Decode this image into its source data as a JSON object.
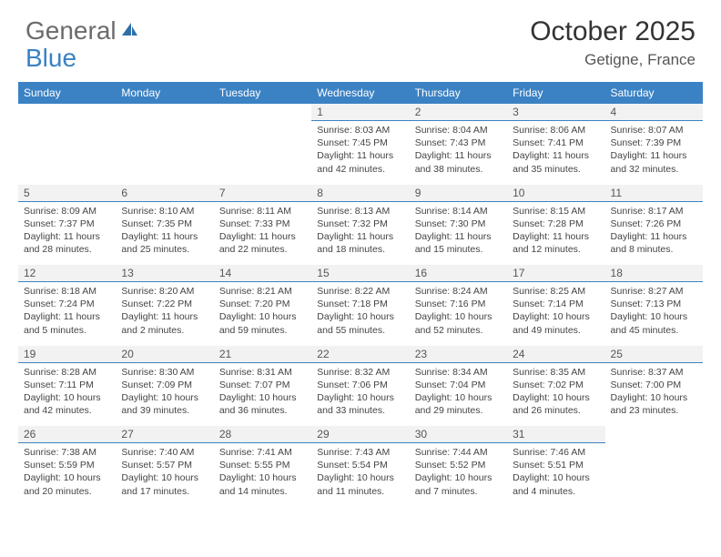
{
  "logo": {
    "text1": "General",
    "text2": "Blue"
  },
  "title": "October 2025",
  "location": "Getigne, France",
  "day_headers": [
    "Sunday",
    "Monday",
    "Tuesday",
    "Wednesday",
    "Thursday",
    "Friday",
    "Saturday"
  ],
  "colors": {
    "header_bg": "#3b82c4",
    "header_text": "#ffffff",
    "daynum_bg": "#f2f2f2",
    "daynum_border": "#3b82c4",
    "body_text": "#444444",
    "title_text": "#333333"
  },
  "weeks": [
    {
      "nums": [
        "",
        "",
        "",
        "1",
        "2",
        "3",
        "4"
      ],
      "cells": [
        null,
        null,
        null,
        {
          "sunrise": "8:03 AM",
          "sunset": "7:45 PM",
          "daylight1": "Daylight: 11 hours",
          "daylight2": "and 42 minutes."
        },
        {
          "sunrise": "8:04 AM",
          "sunset": "7:43 PM",
          "daylight1": "Daylight: 11 hours",
          "daylight2": "and 38 minutes."
        },
        {
          "sunrise": "8:06 AM",
          "sunset": "7:41 PM",
          "daylight1": "Daylight: 11 hours",
          "daylight2": "and 35 minutes."
        },
        {
          "sunrise": "8:07 AM",
          "sunset": "7:39 PM",
          "daylight1": "Daylight: 11 hours",
          "daylight2": "and 32 minutes."
        }
      ]
    },
    {
      "nums": [
        "5",
        "6",
        "7",
        "8",
        "9",
        "10",
        "11"
      ],
      "cells": [
        {
          "sunrise": "8:09 AM",
          "sunset": "7:37 PM",
          "daylight1": "Daylight: 11 hours",
          "daylight2": "and 28 minutes."
        },
        {
          "sunrise": "8:10 AM",
          "sunset": "7:35 PM",
          "daylight1": "Daylight: 11 hours",
          "daylight2": "and 25 minutes."
        },
        {
          "sunrise": "8:11 AM",
          "sunset": "7:33 PM",
          "daylight1": "Daylight: 11 hours",
          "daylight2": "and 22 minutes."
        },
        {
          "sunrise": "8:13 AM",
          "sunset": "7:32 PM",
          "daylight1": "Daylight: 11 hours",
          "daylight2": "and 18 minutes."
        },
        {
          "sunrise": "8:14 AM",
          "sunset": "7:30 PM",
          "daylight1": "Daylight: 11 hours",
          "daylight2": "and 15 minutes."
        },
        {
          "sunrise": "8:15 AM",
          "sunset": "7:28 PM",
          "daylight1": "Daylight: 11 hours",
          "daylight2": "and 12 minutes."
        },
        {
          "sunrise": "8:17 AM",
          "sunset": "7:26 PM",
          "daylight1": "Daylight: 11 hours",
          "daylight2": "and 8 minutes."
        }
      ]
    },
    {
      "nums": [
        "12",
        "13",
        "14",
        "15",
        "16",
        "17",
        "18"
      ],
      "cells": [
        {
          "sunrise": "8:18 AM",
          "sunset": "7:24 PM",
          "daylight1": "Daylight: 11 hours",
          "daylight2": "and 5 minutes."
        },
        {
          "sunrise": "8:20 AM",
          "sunset": "7:22 PM",
          "daylight1": "Daylight: 11 hours",
          "daylight2": "and 2 minutes."
        },
        {
          "sunrise": "8:21 AM",
          "sunset": "7:20 PM",
          "daylight1": "Daylight: 10 hours",
          "daylight2": "and 59 minutes."
        },
        {
          "sunrise": "8:22 AM",
          "sunset": "7:18 PM",
          "daylight1": "Daylight: 10 hours",
          "daylight2": "and 55 minutes."
        },
        {
          "sunrise": "8:24 AM",
          "sunset": "7:16 PM",
          "daylight1": "Daylight: 10 hours",
          "daylight2": "and 52 minutes."
        },
        {
          "sunrise": "8:25 AM",
          "sunset": "7:14 PM",
          "daylight1": "Daylight: 10 hours",
          "daylight2": "and 49 minutes."
        },
        {
          "sunrise": "8:27 AM",
          "sunset": "7:13 PM",
          "daylight1": "Daylight: 10 hours",
          "daylight2": "and 45 minutes."
        }
      ]
    },
    {
      "nums": [
        "19",
        "20",
        "21",
        "22",
        "23",
        "24",
        "25"
      ],
      "cells": [
        {
          "sunrise": "8:28 AM",
          "sunset": "7:11 PM",
          "daylight1": "Daylight: 10 hours",
          "daylight2": "and 42 minutes."
        },
        {
          "sunrise": "8:30 AM",
          "sunset": "7:09 PM",
          "daylight1": "Daylight: 10 hours",
          "daylight2": "and 39 minutes."
        },
        {
          "sunrise": "8:31 AM",
          "sunset": "7:07 PM",
          "daylight1": "Daylight: 10 hours",
          "daylight2": "and 36 minutes."
        },
        {
          "sunrise": "8:32 AM",
          "sunset": "7:06 PM",
          "daylight1": "Daylight: 10 hours",
          "daylight2": "and 33 minutes."
        },
        {
          "sunrise": "8:34 AM",
          "sunset": "7:04 PM",
          "daylight1": "Daylight: 10 hours",
          "daylight2": "and 29 minutes."
        },
        {
          "sunrise": "8:35 AM",
          "sunset": "7:02 PM",
          "daylight1": "Daylight: 10 hours",
          "daylight2": "and 26 minutes."
        },
        {
          "sunrise": "8:37 AM",
          "sunset": "7:00 PM",
          "daylight1": "Daylight: 10 hours",
          "daylight2": "and 23 minutes."
        }
      ]
    },
    {
      "nums": [
        "26",
        "27",
        "28",
        "29",
        "30",
        "31",
        ""
      ],
      "cells": [
        {
          "sunrise": "7:38 AM",
          "sunset": "5:59 PM",
          "daylight1": "Daylight: 10 hours",
          "daylight2": "and 20 minutes."
        },
        {
          "sunrise": "7:40 AM",
          "sunset": "5:57 PM",
          "daylight1": "Daylight: 10 hours",
          "daylight2": "and 17 minutes."
        },
        {
          "sunrise": "7:41 AM",
          "sunset": "5:55 PM",
          "daylight1": "Daylight: 10 hours",
          "daylight2": "and 14 minutes."
        },
        {
          "sunrise": "7:43 AM",
          "sunset": "5:54 PM",
          "daylight1": "Daylight: 10 hours",
          "daylight2": "and 11 minutes."
        },
        {
          "sunrise": "7:44 AM",
          "sunset": "5:52 PM",
          "daylight1": "Daylight: 10 hours",
          "daylight2": "and 7 minutes."
        },
        {
          "sunrise": "7:46 AM",
          "sunset": "5:51 PM",
          "daylight1": "Daylight: 10 hours",
          "daylight2": "and 4 minutes."
        },
        null
      ]
    }
  ],
  "labels": {
    "sunrise_prefix": "Sunrise: ",
    "sunset_prefix": "Sunset: "
  }
}
